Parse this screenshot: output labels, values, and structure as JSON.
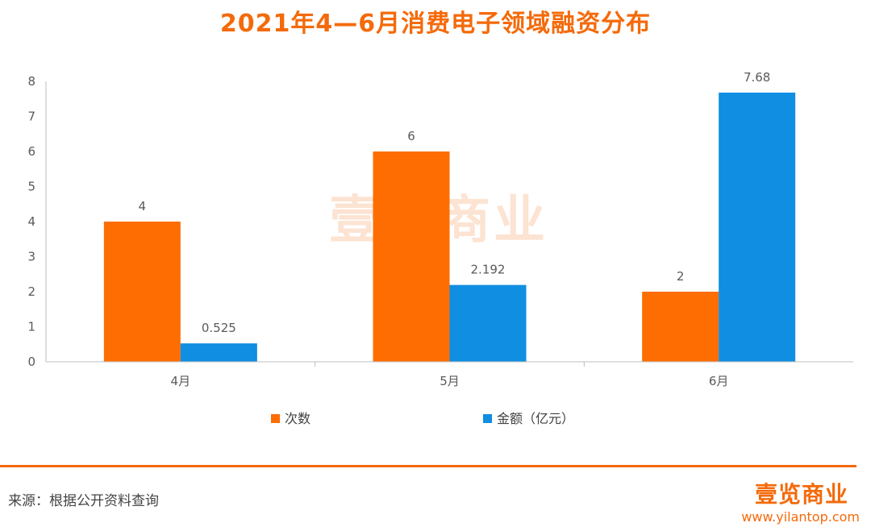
{
  "title": "2021年4—6月消费电子领域融资分布",
  "chart_data": {
    "type": "bar",
    "title": "2021年4—6月消费电子领域融资分布",
    "categories": [
      "4月",
      "5月",
      "6月"
    ],
    "series": [
      {
        "name": "次数",
        "values": [
          4,
          6,
          2
        ],
        "labels": [
          "4",
          "6",
          "2"
        ],
        "color": "#fe6d01"
      },
      {
        "name": "金额（亿元）",
        "values": [
          0.525,
          2.192,
          7.68
        ],
        "labels": [
          "0.525",
          "2.192",
          "7.68"
        ],
        "color": "#0f8ee2"
      }
    ],
    "ylim": [
      0,
      8
    ],
    "yticks": [
      "0",
      "1",
      "2",
      "3",
      "4",
      "5",
      "6",
      "7",
      "8"
    ],
    "legend_position": "bottom",
    "grid": false,
    "xlabel": "",
    "ylabel": ""
  },
  "watermark": "壹览商业",
  "footer": {
    "source": "来源：根据公开资料查询",
    "logo": "壹览商业",
    "website": "www.yilantop.com"
  },
  "colors": {
    "accent": "#f46a0a",
    "axis": "#bfbfbf",
    "text": "#595959"
  }
}
